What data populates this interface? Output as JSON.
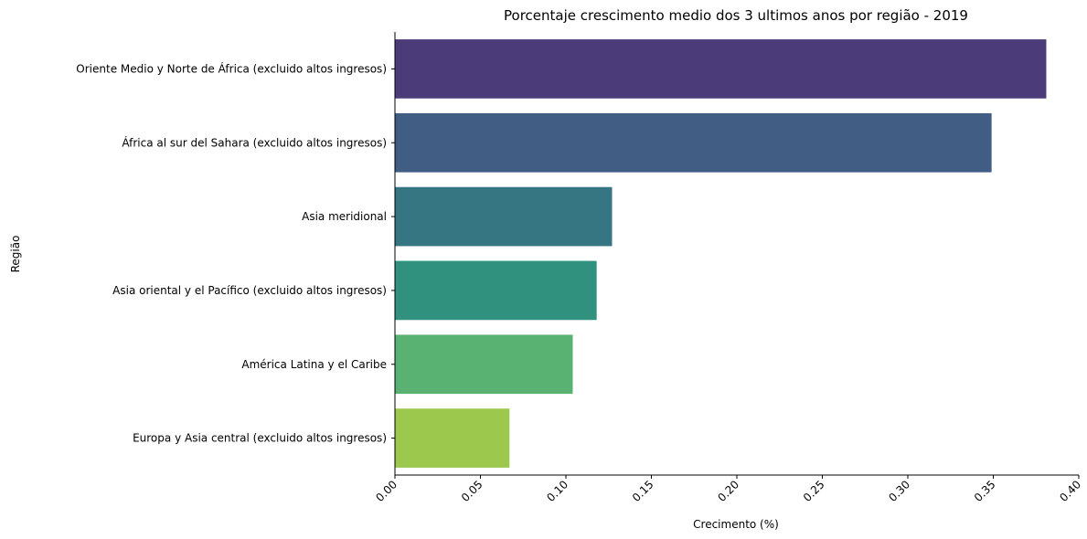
{
  "chart_data": {
    "type": "bar",
    "orientation": "horizontal",
    "title": "Porcentaje crescimento medio dos 3 ultimos anos por região - 2019",
    "xlabel": "Crecimento (%)",
    "ylabel": "Região",
    "xlim": [
      0,
      0.4
    ],
    "xticks": [
      "0.00",
      "0.05",
      "0.10",
      "0.15",
      "0.20",
      "0.25",
      "0.30",
      "0.35",
      "0.40"
    ],
    "grid": false,
    "categories": [
      "Oriente Medio y Norte de África (excluido altos ingresos)",
      "África al sur del Sahara (excluido altos ingresos)",
      "Asia meridional",
      "Asia oriental y el Pacífico (excluido altos ingresos)",
      "América Latina y el Caribe",
      "Europa y Asia central (excluido altos ingresos)"
    ],
    "values": [
      0.381,
      0.349,
      0.127,
      0.118,
      0.104,
      0.067
    ],
    "colors": [
      "#4b3b78",
      "#415d84",
      "#357682",
      "#30917e",
      "#59b272",
      "#9bc84d"
    ]
  }
}
